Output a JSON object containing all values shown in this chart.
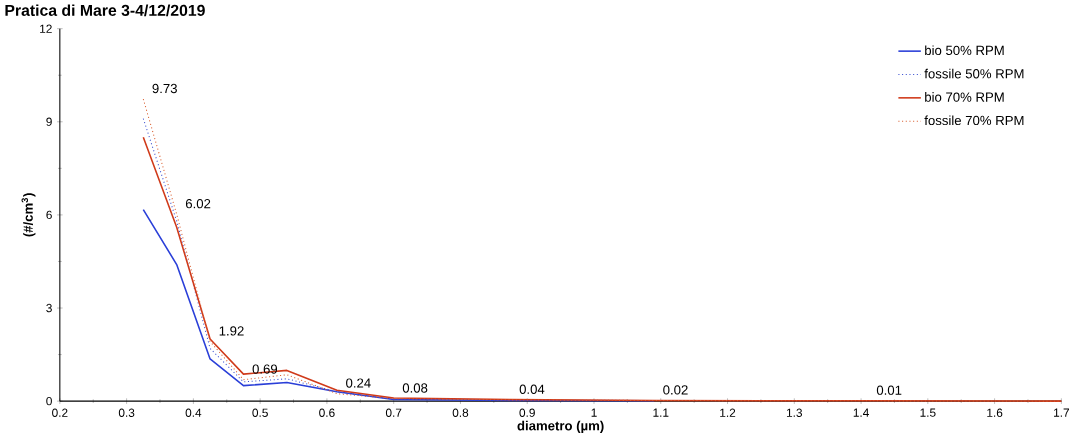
{
  "chart_data": {
    "type": "line",
    "title": "Pratica di Mare 3-4/12/2019",
    "xlabel": "diametro (µm)",
    "ylabel": "(#/cm$^{3}$)",
    "x": [
      0.325,
      0.375,
      0.425,
      0.475,
      0.54,
      0.615,
      0.7,
      0.875,
      1.09,
      1.41,
      1.7
    ],
    "series": [
      {
        "name": "bio 50% RPM",
        "color": "#2a3fd8",
        "line_style": "solid",
        "values": [
          6.17,
          4.4,
          1.36,
          0.5,
          0.6,
          0.3,
          0.05,
          0.02,
          0.01,
          null,
          null
        ]
      },
      {
        "name": "fossile 50% RPM",
        "color": "#3a4fd0",
        "line_style": "dotted",
        "values": [
          9.1,
          5.8,
          1.7,
          0.62,
          0.72,
          0.3,
          0.06,
          0.03,
          null,
          null,
          null
        ]
      },
      {
        "name": "bio 70% RPM",
        "color": "#d03a1a",
        "line_style": "solid",
        "values": [
          8.5,
          5.6,
          2.0,
          0.87,
          0.99,
          0.35,
          0.1,
          0.05,
          0.02,
          0.01,
          0
        ]
      },
      {
        "name": "fossile 70% RPM",
        "color": "#d85a2a",
        "line_style": "dotted",
        "values": [
          9.73,
          6.02,
          1.92,
          0.69,
          0.85,
          0.24,
          0.08,
          0.04,
          0.02,
          0.01,
          0
        ],
        "value_labels": [
          "9.73",
          "6.02",
          "1.92",
          "0.69",
          null,
          "0.24",
          "0.08",
          "0.04",
          "0.02",
          "0.01",
          null
        ]
      }
    ],
    "xlim": [
      0.2,
      1.7
    ],
    "xticks": [
      0.2,
      0.3,
      0.4,
      0.5,
      0.6,
      0.7,
      0.8,
      0.9,
      {
        "value": 1.0,
        "label": "1"
      },
      1.1,
      1.2,
      1.3,
      1.4,
      1.5,
      1.6,
      1.7
    ],
    "ylim": [
      0,
      12
    ],
    "yticks": [
      0,
      3,
      6,
      9,
      12
    ],
    "grid": false,
    "legend": "top right",
    "marker": "none"
  }
}
